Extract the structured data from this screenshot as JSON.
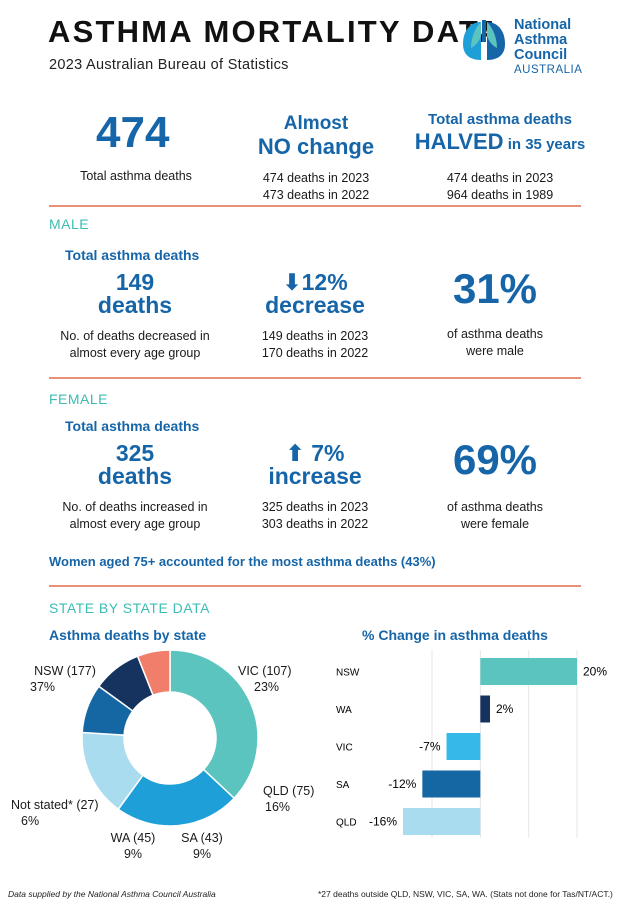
{
  "header": {
    "title": "ASTHMA MORTALITY DATA",
    "subtitle": "2023 Australian Bureau of Statistics",
    "logo": {
      "line1": "National",
      "line2": "Asthma",
      "line3": "Council",
      "line4": "AUSTRALIA",
      "icon": "lungs-logo-icon"
    }
  },
  "overview": {
    "total": {
      "value": "474",
      "label": "Total asthma deaths"
    },
    "change": {
      "line1": "Almost",
      "line2": "NO change",
      "detail1": "474 deaths in 2023",
      "detail2": "473 deaths in 2022"
    },
    "halved": {
      "line1": "Total asthma deaths",
      "line2a": "HALVED",
      "line2b": " in 35 years",
      "detail1": "474 deaths in 2023",
      "detail2": "964 deaths in 1989"
    }
  },
  "male": {
    "section": "MALE",
    "subhead": "Total asthma deaths",
    "count_line1": "149",
    "count_line2": "deaths",
    "count_note1": "No. of deaths decreased in",
    "count_note2": "almost every age group",
    "change_arrow": "⬇",
    "change_line1": "12%",
    "change_line2": "decrease",
    "change_detail1": "149 deaths in 2023",
    "change_detail2": "170 deaths in 2022",
    "share": "31%",
    "share_note1": "of asthma deaths",
    "share_note2": "were male"
  },
  "female": {
    "section": "FEMALE",
    "subhead": "Total asthma deaths",
    "count_line1": "325",
    "count_line2": "deaths",
    "count_note1": "No. of deaths increased in",
    "count_note2": "almost every age group",
    "change_arrow": "⬆",
    "change_line1": " 7%",
    "change_line2": "increase",
    "change_detail1": "325 deaths in 2023",
    "change_detail2": "303 deaths in 2022",
    "share": "69%",
    "share_note1": "of asthma deaths",
    "share_note2": "were female",
    "note": "Women aged 75+ accounted for the most asthma deaths (43%)"
  },
  "state": {
    "section": "STATE BY STATE DATA",
    "donut_title": "Asthma deaths by state",
    "bar_title": "% Change in asthma deaths"
  },
  "chart_data": [
    {
      "type": "pie",
      "title": "Asthma deaths by state",
      "categories": [
        "NSW (177)",
        "VIC (107)",
        "QLD (75)",
        "SA (43)",
        "WA (45)",
        "Not stated* (27)"
      ],
      "values": [
        37,
        23,
        16,
        9,
        9,
        6
      ],
      "value_labels": [
        "37%",
        "23%",
        "16%",
        "9%",
        "9%",
        "6%"
      ],
      "colors": [
        "#5cc4bf",
        "#1e9fd8",
        "#a9dcef",
        "#1567a4",
        "#15335e",
        "#f07e6a"
      ]
    },
    {
      "type": "bar",
      "orientation": "horizontal",
      "title": "% Change in asthma deaths",
      "categories": [
        "NSW",
        "WA",
        "VIC",
        "SA",
        "QLD"
      ],
      "values": [
        20,
        2,
        -7,
        -12,
        -16
      ],
      "value_labels": [
        "20%",
        "2%",
        "-7%",
        "-12%",
        "-16%"
      ],
      "colors": [
        "#5cc4bf",
        "#15335e",
        "#36b8e8",
        "#1567a4",
        "#a9dcef"
      ],
      "xlim": [
        -16,
        20
      ]
    }
  ],
  "footer": {
    "left": "Data supplied by the National Asthma Council Australia",
    "right": "*27 deaths outside QLD, NSW, VIC, SA, WA. (Stats not done for Tas/NT/ACT.)"
  }
}
